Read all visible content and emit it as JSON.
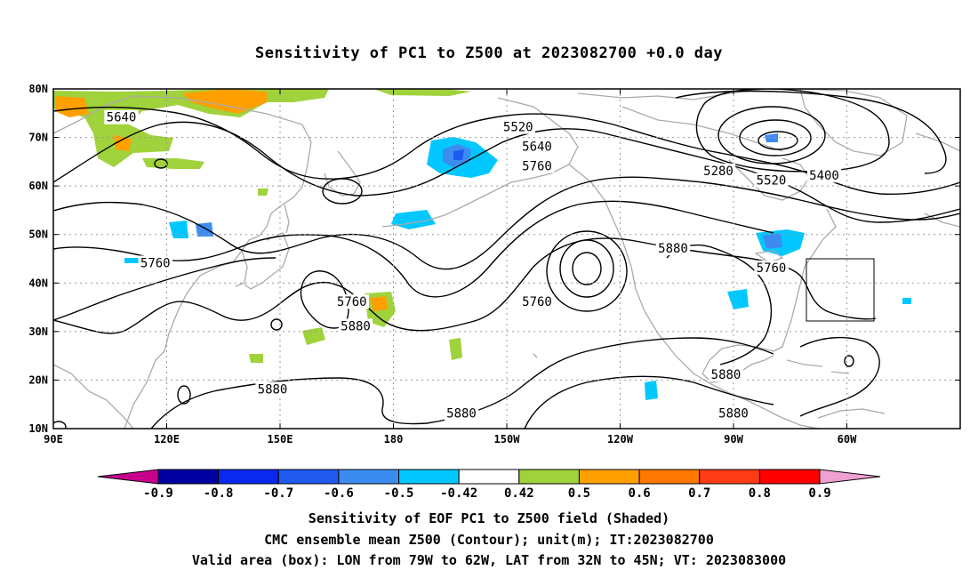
{
  "title": "Sensitivity of PC1 to Z500 at 2023082700 +0.0 day",
  "map": {
    "lat_labels": [
      "80N",
      "70N",
      "60N",
      "50N",
      "40N",
      "30N",
      "20N",
      "10N"
    ],
    "lon_labels": [
      "90E",
      "120E",
      "150E",
      "180",
      "150W",
      "120W",
      "90W",
      "60W"
    ],
    "lon_range": [
      "90E",
      "30W"
    ],
    "lat_range": [
      "10N",
      "80N"
    ],
    "valid_box": {
      "lon_min": -79,
      "lon_max": -62,
      "lat_min": 32,
      "lat_max": 45
    },
    "contour_labels": [
      {
        "text": "5640",
        "lon": 108,
        "lat": 74
      },
      {
        "text": "5520",
        "lon": -147,
        "lat": 72
      },
      {
        "text": "5640",
        "lon": -142,
        "lat": 68
      },
      {
        "text": "5760",
        "lon": -142,
        "lat": 64
      },
      {
        "text": "5280",
        "lon": -94,
        "lat": 63
      },
      {
        "text": "5400",
        "lon": -66,
        "lat": 62
      },
      {
        "text": "5520",
        "lon": -80,
        "lat": 61
      },
      {
        "text": "5760",
        "lon": 117,
        "lat": 44
      },
      {
        "text": "5760",
        "lon": 169,
        "lat": 36
      },
      {
        "text": "5760",
        "lon": -142,
        "lat": 36
      },
      {
        "text": "5880",
        "lon": -106,
        "lat": 47
      },
      {
        "text": "5760",
        "lon": -80,
        "lat": 43
      },
      {
        "text": "5880",
        "lon": 170,
        "lat": 31
      },
      {
        "text": "5880",
        "lon": 148,
        "lat": 18
      },
      {
        "text": "5880",
        "lon": -162,
        "lat": 13
      },
      {
        "text": "5880",
        "lon": -92,
        "lat": 21
      },
      {
        "text": "5880",
        "lon": -90,
        "lat": 13
      }
    ]
  },
  "colorbar": {
    "labels": [
      "-0.9",
      "-0.8",
      "-0.7",
      "-0.6",
      "-0.5",
      "-0.42",
      "0.42",
      "0.5",
      "0.6",
      "0.7",
      "0.8",
      "0.9"
    ],
    "colors": [
      "#0000a0",
      "#0a28f0",
      "#1e5af0",
      "#3c8cf0",
      "#00c8ff",
      "#ffffff",
      "#a0d23c",
      "#ffa000",
      "#ff7800",
      "#ff3c14",
      "#ff0000"
    ],
    "low_end_color": "#c8008c",
    "high_end_color": "#f0a0d2"
  },
  "captions": [
    "Sensitivity of EOF PC1 to Z500 field (Shaded)",
    "CMC ensemble mean Z500 (Contour); unit(m); IT:2023082700",
    "Valid area (box): LON from 79W to 62W, LAT from 32N to 45N; VT: 2023083000"
  ]
}
